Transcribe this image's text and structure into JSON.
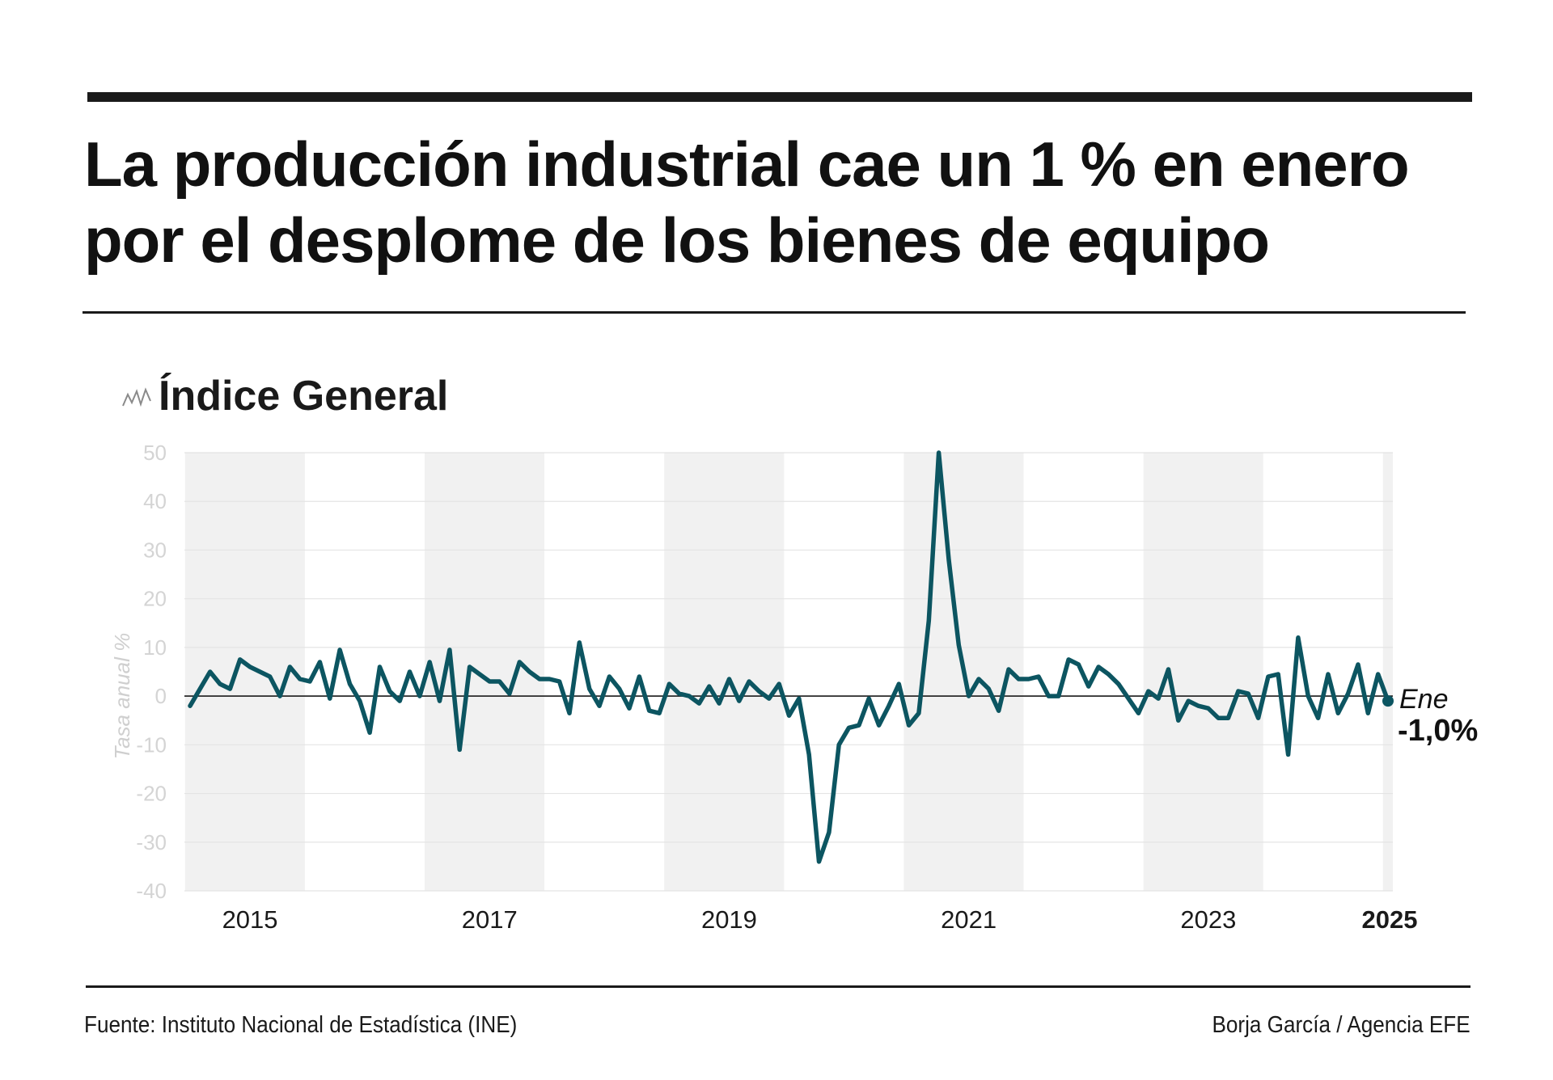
{
  "headline": "La producción industrial cae un 1 % en enero por el desplome de los bienes de equipo",
  "chart_title": "Índice General",
  "footer": {
    "source": "Fuente: Instituto Nacional de Estadística (INE)",
    "credit": "Borja García / Agencia EFE"
  },
  "colors": {
    "line": "#0c5561",
    "band": "#f1f1f1",
    "grid": "#e4e4e4",
    "zero": "#1a1a1a",
    "text": "#111111"
  },
  "chart_data": {
    "type": "line",
    "title": "Índice General",
    "ylabel": "Tasa anual %",
    "xlabel": "",
    "ylim": [
      -40,
      50
    ],
    "yticks": [
      50,
      40,
      30,
      20,
      10,
      0,
      -10,
      -20,
      -30,
      -40
    ],
    "xticks": [
      {
        "label": "2015",
        "year": 2015,
        "bold": false
      },
      {
        "label": "2017",
        "year": 2017,
        "bold": false
      },
      {
        "label": "2019",
        "year": 2019,
        "bold": false
      },
      {
        "label": "2021",
        "year": 2021,
        "bold": false
      },
      {
        "label": "2023",
        "year": 2023,
        "bold": false
      },
      {
        "label": "2025",
        "year": 2025,
        "bold": true
      }
    ],
    "shaded_years": [
      2015,
      2017,
      2019,
      2021,
      2023,
      2025
    ],
    "grid": true,
    "series": [
      {
        "start": "2015-01",
        "end": "2025-01",
        "frequency": "monthly",
        "values": [
          -2,
          1.5,
          5,
          2.5,
          1.5,
          7.5,
          6,
          5,
          4,
          0,
          6,
          3.5,
          3,
          7,
          -0.5,
          9.5,
          2.5,
          -1,
          -7.5,
          6,
          1,
          -1,
          5,
          0,
          7,
          -1,
          9.5,
          -11,
          6,
          4.5,
          3,
          3,
          0.5,
          7,
          5,
          3.5,
          3.5,
          3,
          -3.5,
          11,
          1.5,
          -2,
          4,
          1.5,
          -2.5,
          4,
          -3,
          -3.5,
          2.5,
          0.5,
          0,
          -1.5,
          2,
          -1.5,
          3.5,
          -1,
          3,
          1,
          -0.5,
          2.5,
          -4,
          -0.5,
          -12,
          -34,
          -28,
          -10,
          -6.5,
          -6,
          -0.5,
          -6,
          -2,
          2.5,
          -6,
          -3.5,
          15.5,
          50,
          28,
          10.5,
          0,
          3.5,
          1.5,
          -3,
          5.5,
          3.5,
          3.5,
          4,
          0,
          0,
          7.5,
          6.5,
          2,
          6,
          4.5,
          2.5,
          -0.5,
          -3.5,
          1,
          -0.5,
          5.5,
          -5,
          -1,
          -2,
          -2.5,
          -4.5,
          -4.5,
          1,
          0.5,
          -4.5,
          4,
          4.5,
          -12,
          12,
          0,
          -4.5,
          4.5,
          -3.5,
          0.5,
          6.5,
          -3.5,
          4.5,
          -1
        ]
      }
    ],
    "annotation": {
      "month": "Ene",
      "value": "-1,0%"
    }
  }
}
